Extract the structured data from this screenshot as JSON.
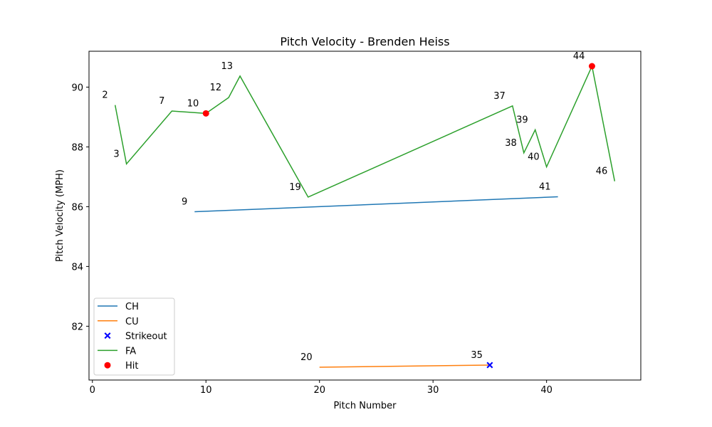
{
  "chart_data": {
    "type": "line",
    "title": "Pitch Velocity - Brenden Heiss",
    "xlabel": "Pitch Number",
    "ylabel": "Pitch Velocity (MPH)",
    "xlim": [
      -0.3,
      48.3
    ],
    "ylim": [
      80.2,
      91.2
    ],
    "xticks": [
      0,
      10,
      20,
      30,
      40
    ],
    "yticks": [
      82,
      84,
      86,
      88,
      90
    ],
    "grid": false,
    "legend_position": "lower-left",
    "series": [
      {
        "name": "CH",
        "kind": "line",
        "color": "#1f77b4",
        "points": [
          [
            9,
            85.83
          ],
          [
            41,
            86.33
          ]
        ]
      },
      {
        "name": "CU",
        "kind": "line",
        "color": "#ff7f0e",
        "points": [
          [
            20,
            80.63
          ],
          [
            35,
            80.7
          ]
        ]
      },
      {
        "name": "FA",
        "kind": "line",
        "color": "#2ca02c",
        "points": [
          [
            2,
            89.4
          ],
          [
            3,
            87.43
          ],
          [
            7,
            89.2
          ],
          [
            10,
            89.12
          ],
          [
            12,
            89.65
          ],
          [
            13,
            90.37
          ],
          [
            19,
            86.32
          ],
          [
            37,
            89.37
          ],
          [
            38,
            87.8
          ],
          [
            39,
            88.57
          ],
          [
            40,
            87.33
          ],
          [
            44,
            90.7
          ],
          [
            46,
            86.85
          ]
        ]
      }
    ],
    "markers": [
      {
        "name": "Strikeout",
        "shape": "x",
        "color": "#0000ff",
        "points": [
          [
            35,
            80.7
          ]
        ]
      },
      {
        "name": "Hit",
        "shape": "circle",
        "color": "#ff0000",
        "points": [
          [
            10,
            89.12
          ],
          [
            44,
            90.7
          ]
        ]
      }
    ],
    "legend_order": [
      "CH",
      "CU",
      "Strikeout",
      "FA",
      "Hit"
    ],
    "annotations": [
      {
        "text": "2",
        "x": 2,
        "y": 89.4
      },
      {
        "text": "3",
        "x": 3,
        "y": 87.43
      },
      {
        "text": "7",
        "x": 7,
        "y": 89.2
      },
      {
        "text": "10",
        "x": 10,
        "y": 89.12
      },
      {
        "text": "12",
        "x": 12,
        "y": 89.65
      },
      {
        "text": "13",
        "x": 13,
        "y": 90.37
      },
      {
        "text": "19",
        "x": 19,
        "y": 86.32
      },
      {
        "text": "37",
        "x": 37,
        "y": 89.37
      },
      {
        "text": "38",
        "x": 38,
        "y": 87.8
      },
      {
        "text": "39",
        "x": 39,
        "y": 88.57
      },
      {
        "text": "40",
        "x": 40,
        "y": 87.33
      },
      {
        "text": "44",
        "x": 44,
        "y": 90.7
      },
      {
        "text": "46",
        "x": 46,
        "y": 86.85
      },
      {
        "text": "9",
        "x": 9,
        "y": 85.83
      },
      {
        "text": "41",
        "x": 41,
        "y": 86.33
      },
      {
        "text": "20",
        "x": 20,
        "y": 80.63
      },
      {
        "text": "35",
        "x": 35,
        "y": 80.7
      }
    ]
  }
}
